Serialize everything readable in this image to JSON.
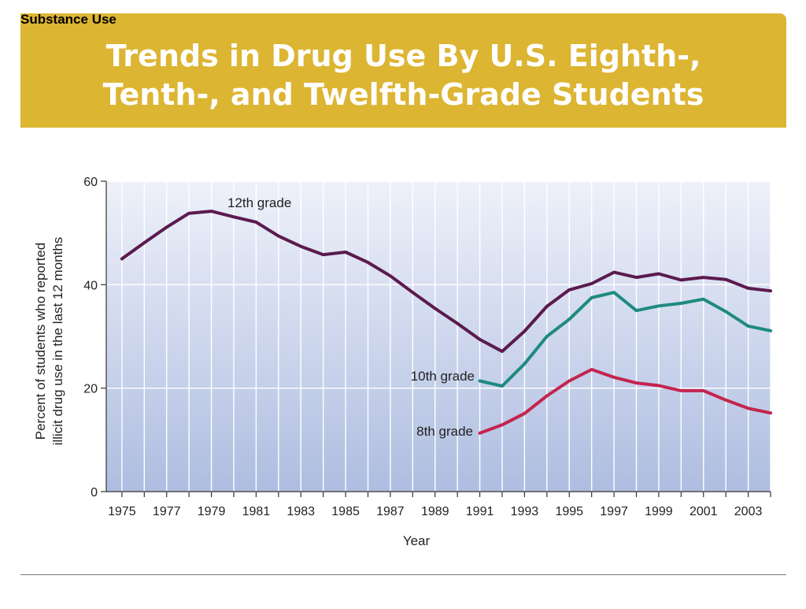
{
  "header": {
    "section_label": "Substance Use",
    "title_line1": "Trends in Drug Use By U.S. Eighth-,",
    "title_line2": "Tenth-, and Twelfth-Grade Students"
  },
  "colors": {
    "banner": "#dcb533",
    "series_12th": "#5b1a4e",
    "series_10th": "#1e8a80",
    "series_8th": "#c4244f"
  },
  "chart_data": {
    "type": "line",
    "title": "",
    "xlabel": "Year",
    "ylabel_line1": "Percent of students who reported",
    "ylabel_line2": "illicit drug use in the last 12 months",
    "xlim": [
      1974.3,
      2004
    ],
    "ylim": [
      0,
      60
    ],
    "x_ticks": [
      1975,
      1977,
      1979,
      1981,
      1983,
      1985,
      1987,
      1989,
      1991,
      1993,
      1995,
      1997,
      1999,
      2001,
      2003
    ],
    "y_ticks": [
      0,
      20,
      40,
      60
    ],
    "grid": true,
    "series": [
      {
        "name": "12th grade",
        "x": [
          1975,
          1976,
          1977,
          1978,
          1979,
          1980,
          1981,
          1982,
          1983,
          1984,
          1985,
          1986,
          1987,
          1988,
          1989,
          1990,
          1991,
          1992,
          1993,
          1994,
          1995,
          1996,
          1997,
          1998,
          1999,
          2000,
          2001,
          2002,
          2003,
          2004
        ],
        "y": [
          45.0,
          48.1,
          51.1,
          53.8,
          54.2,
          53.1,
          52.1,
          49.4,
          47.4,
          45.8,
          46.3,
          44.3,
          41.7,
          38.5,
          35.4,
          32.5,
          29.4,
          27.1,
          31.0,
          35.8,
          39.0,
          40.2,
          42.4,
          41.4,
          42.1,
          40.9,
          41.4,
          41.0,
          39.3,
          38.8
        ],
        "color": "#5b1a4e"
      },
      {
        "name": "10th grade",
        "x": [
          1991,
          1992,
          1993,
          1994,
          1995,
          1996,
          1997,
          1998,
          1999,
          2000,
          2001,
          2002,
          2003,
          2004
        ],
        "y": [
          21.4,
          20.4,
          24.7,
          30.0,
          33.3,
          37.5,
          38.5,
          35.0,
          35.9,
          36.4,
          37.2,
          34.8,
          32.0,
          31.1
        ],
        "color": "#1e8a80"
      },
      {
        "name": "8th grade",
        "x": [
          1991,
          1992,
          1993,
          1994,
          1995,
          1996,
          1997,
          1998,
          1999,
          2000,
          2001,
          2002,
          2003,
          2004
        ],
        "y": [
          11.3,
          12.9,
          15.1,
          18.5,
          21.4,
          23.6,
          22.1,
          21.0,
          20.5,
          19.5,
          19.5,
          17.7,
          16.1,
          15.2
        ],
        "color": "#c4244f"
      }
    ],
    "annotations": [
      {
        "text": "12th grade",
        "series": "12th grade"
      },
      {
        "text": "10th grade",
        "series": "10th grade"
      },
      {
        "text": "8th grade",
        "series": "8th grade"
      }
    ]
  }
}
